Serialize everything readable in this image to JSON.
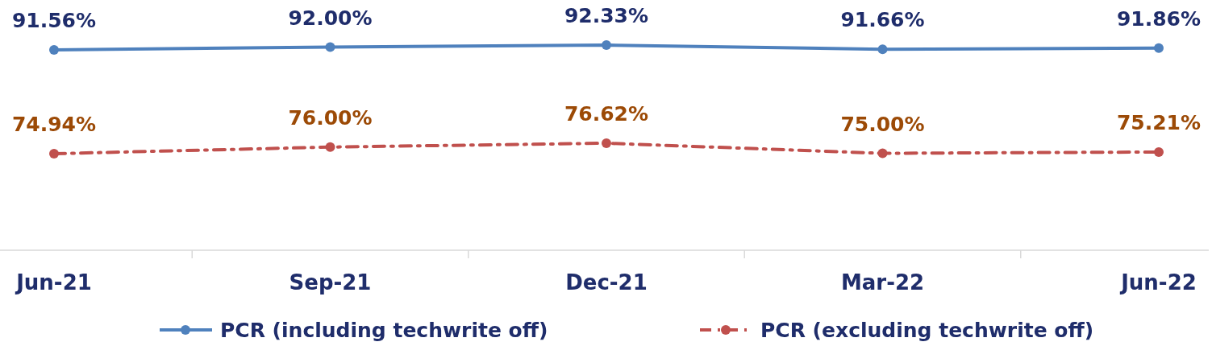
{
  "chart_data": {
    "type": "line",
    "categories": [
      "Jun-21",
      "Sep-21",
      "Dec-21",
      "Mar-22",
      "Jun-22"
    ],
    "series": [
      {
        "name": "PCR (including techwrite off)",
        "color": "#4f81bd",
        "values": [
          91.56,
          92.0,
          92.33,
          91.66,
          91.86
        ],
        "value_labels": [
          "91.56%",
          "92.00%",
          "92.33%",
          "91.66%",
          "91.86%"
        ],
        "line_style": "solid"
      },
      {
        "name": "PCR (excluding techwrite off)",
        "color": "#c0504d",
        "values": [
          74.94,
          76.0,
          76.62,
          75.0,
          75.21
        ],
        "value_labels": [
          "74.94%",
          "76.00%",
          "76.62%",
          "75.00%",
          "75.21%"
        ],
        "line_style": "dashed"
      }
    ],
    "tick_labels": "x",
    "marker": "circle",
    "legend": "bottom"
  }
}
